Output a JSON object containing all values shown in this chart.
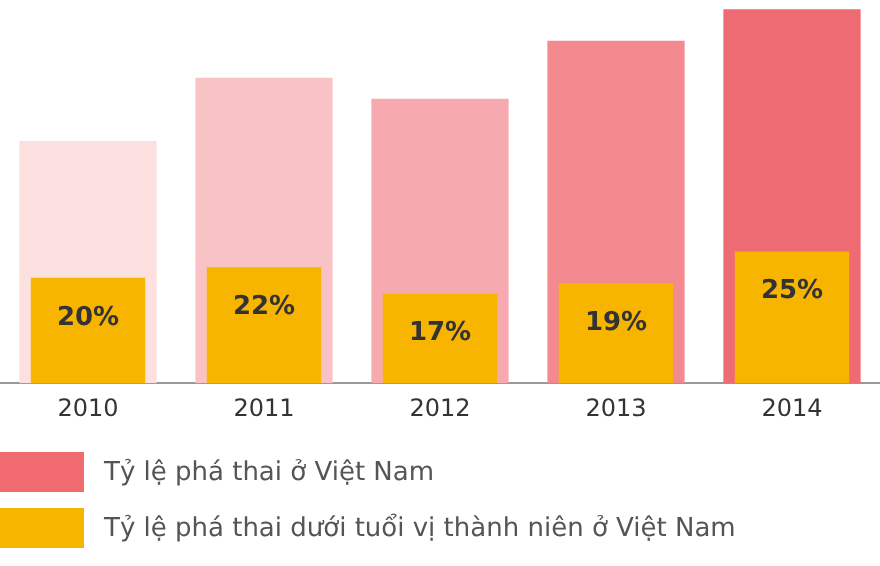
{
  "chart_data": {
    "type": "bar",
    "ylim": [
      0,
      72
    ],
    "tick_labels": "x",
    "categories": [
      "2010",
      "2011",
      "2012",
      "2013",
      "2014"
    ],
    "series": [
      {
        "name": "Tỷ lệ phá thai ở Việt Nam",
        "color": "#f06a70",
        "colors": [
          "#fde0e0",
          "#f9c3c5",
          "#f6aab0",
          "#f28a90",
          "#ef6b73"
        ],
        "values": [
          46,
          58,
          54,
          65,
          71
        ]
      },
      {
        "name": "Tỷ lệ phá thai dưới tuổi vị thành niên ở Việt Nam",
        "color": "#f7b500",
        "values": [
          20,
          22,
          17,
          19,
          25
        ],
        "value_labels": [
          "20%",
          "22%",
          "17%",
          "19%",
          "25%"
        ]
      }
    ],
    "grid": false,
    "legend": "bottom"
  }
}
